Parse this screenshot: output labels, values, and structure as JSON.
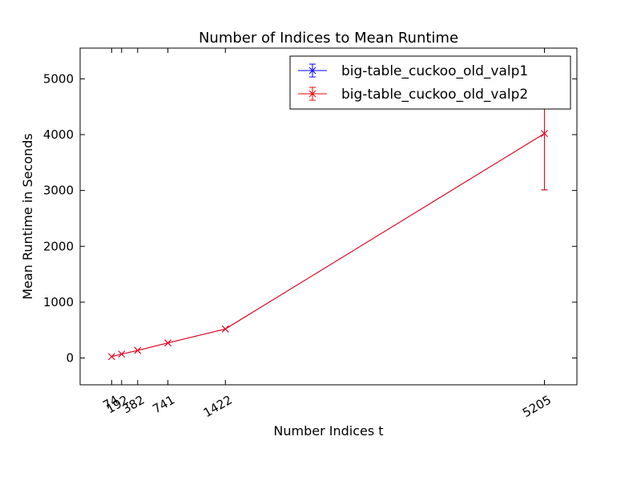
{
  "chart_data": {
    "type": "line",
    "title": "Number of Indices to Mean Runtime",
    "xlabel": "Number Indices t",
    "ylabel": "Mean Runtime in Seconds",
    "xlim": [
      -300,
      5590
    ],
    "ylim": [
      -480,
      5550
    ],
    "x_ticks": [
      74,
      192,
      382,
      741,
      1422,
      5205
    ],
    "x_tick_labels": [
      "74",
      "192",
      "382",
      "741",
      "1422",
      "5205"
    ],
    "y_ticks": [
      0,
      1000,
      2000,
      3000,
      4000,
      5000
    ],
    "y_tick_labels": [
      "0",
      "1000",
      "2000",
      "3000",
      "4000",
      "5000"
    ],
    "grid": false,
    "legend_position": "top-right",
    "series": [
      {
        "name": "big-table_cuckoo_old_valp1",
        "color": "#0000ff",
        "marker": "x",
        "x": [
          74,
          192,
          382,
          741,
          1422,
          5205
        ],
        "y": [
          25,
          70,
          135,
          270,
          520,
          4020
        ],
        "err": [
          0,
          0,
          0,
          0,
          0,
          1010
        ]
      },
      {
        "name": "big-table_cuckoo_old_valp2",
        "color": "#ff0000",
        "marker": "x",
        "x": [
          74,
          192,
          382,
          741,
          1422,
          5205
        ],
        "y": [
          25,
          70,
          135,
          270,
          520,
          4020
        ],
        "err": [
          0,
          0,
          0,
          0,
          0,
          1010
        ]
      }
    ]
  }
}
